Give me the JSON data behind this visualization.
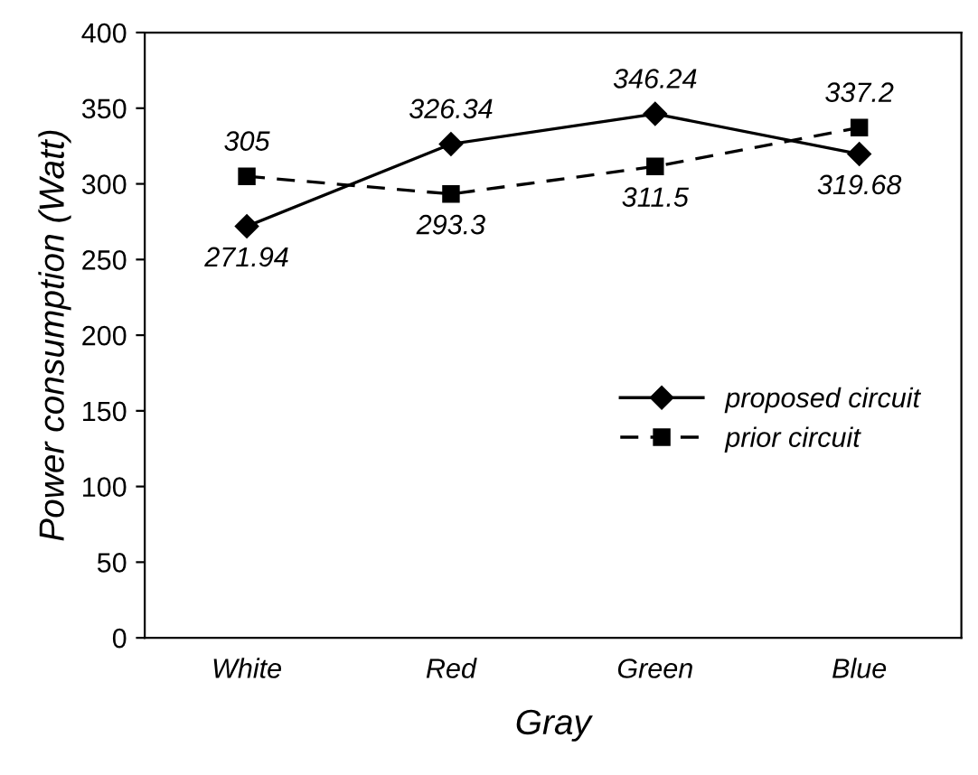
{
  "chart_data": {
    "type": "line",
    "xlabel": "Gray",
    "ylabel": "Power consumption (Watt)",
    "categories": [
      "White",
      "Red",
      "Green",
      "Blue"
    ],
    "series": [
      {
        "name": "proposed circuit",
        "color": "#000000",
        "values": [
          271.94,
          326.34,
          346.24,
          319.68
        ],
        "marker": "diamond",
        "line_style": "solid"
      },
      {
        "name": "prior circuit",
        "color": "#000000",
        "values": [
          305,
          293.3,
          311.5,
          337.2
        ],
        "marker": "square",
        "line_style": "dashed"
      }
    ],
    "ylim": [
      0,
      400
    ],
    "yticks": [
      0,
      50,
      100,
      150,
      200,
      250,
      300,
      350,
      400
    ],
    "data_labels": true,
    "grid": false,
    "legend": "right"
  }
}
